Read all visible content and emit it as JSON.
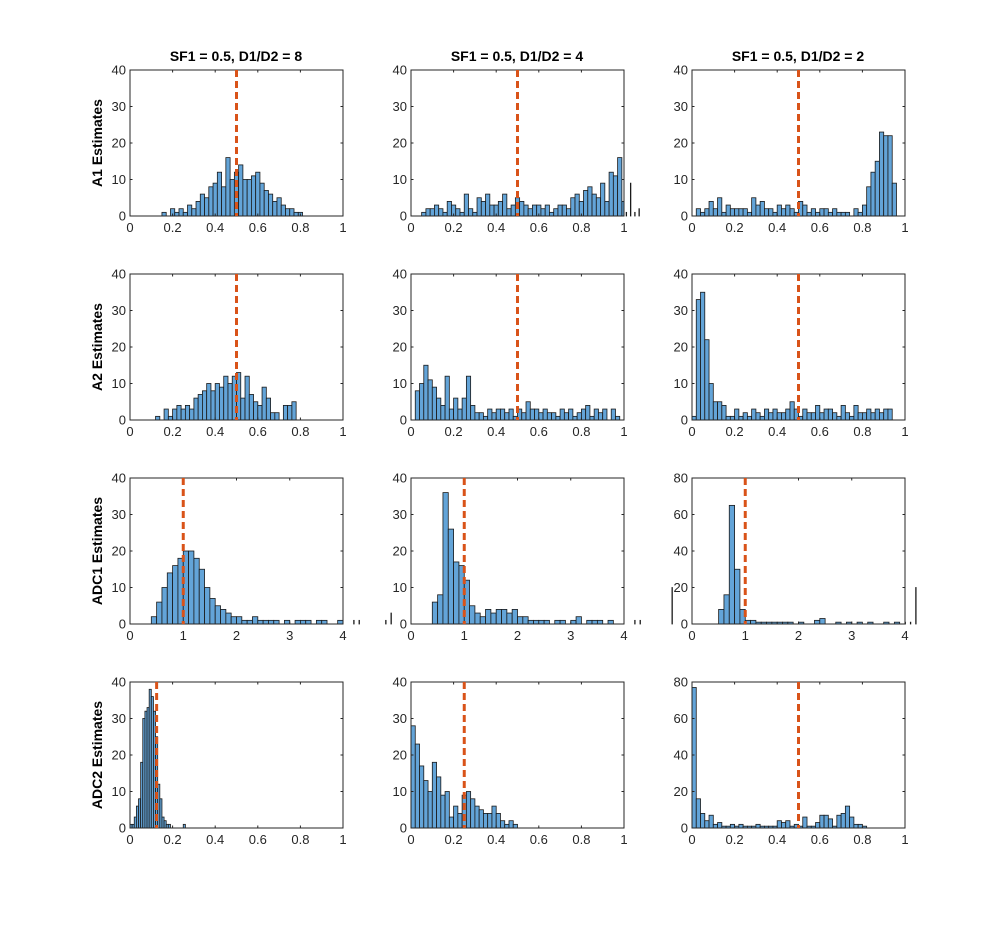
{
  "colors": {
    "bar_fill": "#63a4d8",
    "bar_edge": "#1a1a1a",
    "reference_line": "#d95319",
    "axes": "#262626",
    "background": "#ffffff"
  },
  "column_titles": [
    "SF1 = 0.5, D1/D2 = 8",
    "SF1 = 0.5, D1/D2 = 4",
    "SF1 = 0.5, D1/D2 = 2"
  ],
  "row_labels": [
    "A1 Estimates",
    "A2 Estimates",
    "ADC1 Estimates",
    "ADC2 Estimates"
  ],
  "chart_data": [
    {
      "type": "bar",
      "row": 0,
      "col": 0,
      "xlim": [
        0,
        1
      ],
      "ylim": [
        0,
        40
      ],
      "xticks": [
        "0",
        "0.2",
        "0.4",
        "0.6",
        "0.8",
        "1"
      ],
      "yticks": [
        "0",
        "10",
        "20",
        "30",
        "40"
      ],
      "bin_start": 0.15,
      "bin_width": 0.02,
      "ref_line_x": 0.5,
      "values": [
        1,
        0,
        2,
        1,
        2,
        1,
        3,
        2,
        4,
        6,
        5,
        8,
        9,
        12,
        8,
        16,
        10,
        12,
        14,
        10,
        10,
        11,
        12,
        9,
        7,
        6,
        4,
        5,
        3,
        2,
        2,
        1,
        1
      ]
    },
    {
      "type": "bar",
      "row": 0,
      "col": 1,
      "xlim": [
        0,
        1
      ],
      "ylim": [
        0,
        40
      ],
      "xticks": [
        "0",
        "0.2",
        "0.4",
        "0.6",
        "0.8",
        "1"
      ],
      "yticks": [
        "0",
        "10",
        "20",
        "30",
        "40"
      ],
      "bin_start": 0.05,
      "bin_width": 0.02,
      "ref_line_x": 0.5,
      "values": [
        1,
        2,
        2,
        3,
        2,
        1,
        4,
        3,
        2,
        1,
        6,
        2,
        1,
        5,
        4,
        6,
        3,
        3,
        4,
        6,
        2,
        3,
        5,
        4,
        3,
        2,
        3,
        3,
        2,
        3,
        1,
        2,
        3,
        3,
        2,
        5,
        6,
        4,
        7,
        8,
        6,
        5,
        9,
        4,
        12,
        11,
        16,
        4,
        1,
        9,
        1,
        2
      ]
    },
    {
      "type": "bar",
      "row": 0,
      "col": 2,
      "xlim": [
        0,
        1
      ],
      "ylim": [
        0,
        40
      ],
      "xticks": [
        "0",
        "0.2",
        "0.4",
        "0.6",
        "0.8",
        "1"
      ],
      "yticks": [
        "0",
        "10",
        "20",
        "30",
        "40"
      ],
      "bin_start": 0.02,
      "bin_width": 0.02,
      "ref_line_x": 0.5,
      "values": [
        2,
        1,
        2,
        4,
        2,
        5,
        1,
        3,
        2,
        2,
        2,
        2,
        1,
        5,
        3,
        4,
        2,
        2,
        1,
        3,
        2,
        3,
        2,
        1,
        4,
        3,
        1,
        2,
        1,
        2,
        2,
        1,
        2,
        1,
        1,
        1,
        0,
        2,
        1,
        3,
        8,
        12,
        15,
        23,
        22,
        22,
        9
      ]
    },
    {
      "type": "bar",
      "row": 1,
      "col": 0,
      "xlim": [
        0,
        1
      ],
      "ylim": [
        0,
        40
      ],
      "xticks": [
        "0",
        "0.2",
        "0.4",
        "0.6",
        "0.8",
        "1"
      ],
      "yticks": [
        "0",
        "10",
        "20",
        "30",
        "40"
      ],
      "bin_start": 0.12,
      "bin_width": 0.02,
      "ref_line_x": 0.5,
      "values": [
        1,
        0,
        3,
        1,
        3,
        4,
        3,
        4,
        3,
        6,
        7,
        8,
        10,
        8,
        10,
        9,
        12,
        10,
        12,
        13,
        6,
        12,
        7,
        5,
        4,
        9,
        6,
        2,
        2,
        0,
        4,
        4,
        5
      ]
    },
    {
      "type": "bar",
      "row": 1,
      "col": 1,
      "xlim": [
        0,
        1
      ],
      "ylim": [
        0,
        40
      ],
      "xticks": [
        "0",
        "0.2",
        "0.4",
        "0.6",
        "0.8",
        "1"
      ],
      "yticks": [
        "0",
        "10",
        "20",
        "30",
        "40"
      ],
      "bin_start": 0.02,
      "bin_width": 0.02,
      "ref_line_x": 0.5,
      "values": [
        8,
        10,
        15,
        11,
        9,
        6,
        4,
        12,
        3,
        6,
        3,
        6,
        12,
        4,
        2,
        2,
        1,
        3,
        2,
        3,
        3,
        2,
        3,
        1,
        3,
        2,
        5,
        3,
        3,
        2,
        3,
        2,
        2,
        1,
        3,
        2,
        3,
        1,
        2,
        3,
        4,
        1,
        3,
        2,
        3,
        0,
        3,
        1
      ]
    },
    {
      "type": "bar",
      "row": 1,
      "col": 2,
      "xlim": [
        0,
        1
      ],
      "ylim": [
        0,
        40
      ],
      "xticks": [
        "0",
        "0.2",
        "0.4",
        "0.6",
        "0.8",
        "1"
      ],
      "yticks": [
        "0",
        "10",
        "20",
        "30",
        "40"
      ],
      "bin_start": 0,
      "bin_width": 0.02,
      "ref_line_x": 0.5,
      "values": [
        1,
        33,
        35,
        22,
        10,
        5,
        5,
        4,
        1,
        1,
        3,
        1,
        2,
        1,
        3,
        2,
        1,
        3,
        2,
        3,
        2,
        2,
        3,
        5,
        3,
        1,
        3,
        2,
        2,
        4,
        2,
        3,
        3,
        2,
        1,
        4,
        2,
        1,
        4,
        2,
        2,
        3,
        2,
        3,
        2,
        3,
        3
      ]
    },
    {
      "type": "bar",
      "row": 2,
      "col": 0,
      "xlim": [
        0,
        4
      ],
      "ylim": [
        0,
        40
      ],
      "xticks": [
        "0",
        "1",
        "2",
        "3",
        "4"
      ],
      "yticks": [
        "0",
        "10",
        "20",
        "30",
        "40"
      ],
      "bin_start": 0.4,
      "bin_width": 0.1,
      "ref_line_x": 1,
      "values": [
        2,
        6,
        10,
        14,
        16,
        18,
        20,
        20,
        18,
        15,
        10,
        7,
        5,
        4,
        3,
        2,
        2,
        1,
        1,
        2,
        1,
        1,
        1,
        1,
        0,
        1,
        0,
        1,
        1,
        1,
        0,
        1,
        1,
        0,
        0,
        1,
        0,
        0,
        1,
        1,
        0,
        0,
        0,
        0,
        1,
        3
      ]
    },
    {
      "type": "bar",
      "row": 2,
      "col": 1,
      "xlim": [
        0,
        4
      ],
      "ylim": [
        0,
        40
      ],
      "xticks": [
        "0",
        "1",
        "2",
        "3",
        "4"
      ],
      "yticks": [
        "0",
        "10",
        "20",
        "30",
        "40"
      ],
      "bin_start": 0.4,
      "bin_width": 0.1,
      "ref_line_x": 1,
      "values": [
        6,
        8,
        36,
        26,
        17,
        16,
        12,
        5,
        3,
        2,
        4,
        3,
        4,
        4,
        3,
        4,
        2,
        2,
        1,
        1,
        1,
        1,
        0,
        1,
        1,
        0,
        1,
        2,
        0,
        1,
        1,
        1,
        0,
        1,
        0,
        0,
        0,
        0,
        1,
        1,
        0,
        0,
        0,
        0,
        0,
        10
      ]
    },
    {
      "type": "bar",
      "row": 2,
      "col": 2,
      "xlim": [
        0,
        4
      ],
      "ylim": [
        0,
        80
      ],
      "xticks": [
        "0",
        "1",
        "2",
        "3",
        "4"
      ],
      "yticks": [
        "0",
        "20",
        "40",
        "60",
        "80"
      ],
      "bin_start": 0.5,
      "bin_width": 0.1,
      "ref_line_x": 1,
      "values": [
        8,
        16,
        65,
        30,
        8,
        2,
        2,
        1,
        1,
        1,
        1,
        1,
        1,
        1,
        0,
        1,
        0,
        0,
        2,
        3,
        0,
        0,
        1,
        0,
        1,
        0,
        1,
        0,
        1,
        0,
        0,
        1,
        0,
        1,
        0,
        1,
        1,
        20
      ]
    },
    {
      "type": "bar",
      "row": 3,
      "col": 0,
      "xlim": [
        0,
        1
      ],
      "ylim": [
        0,
        40
      ],
      "xticks": [
        "0",
        "0.2",
        "0.4",
        "0.6",
        "0.8",
        "1"
      ],
      "yticks": [
        "0",
        "10",
        "20",
        "30",
        "40"
      ],
      "bin_start": 0,
      "bin_width": 0.01,
      "ref_line_x": 0.125,
      "values": [
        1,
        1,
        3,
        6,
        8,
        18,
        30,
        32,
        33,
        38,
        36,
        32,
        25,
        12,
        8,
        3,
        2,
        1,
        1,
        0,
        0,
        0,
        0,
        0,
        0,
        1
      ]
    },
    {
      "type": "bar",
      "row": 3,
      "col": 1,
      "xlim": [
        0,
        1
      ],
      "ylim": [
        0,
        40
      ],
      "xticks": [
        "0",
        "0.2",
        "0.4",
        "0.6",
        "0.8",
        "1"
      ],
      "yticks": [
        "0",
        "10",
        "20",
        "30",
        "40"
      ],
      "bin_start": 0,
      "bin_width": 0.02,
      "ref_line_x": 0.25,
      "values": [
        28,
        23,
        17,
        13,
        10,
        18,
        14,
        9,
        10,
        3,
        6,
        4,
        9,
        10,
        8,
        6,
        5,
        4,
        4,
        6,
        4,
        2,
        1,
        2,
        1
      ]
    },
    {
      "type": "bar",
      "row": 3,
      "col": 2,
      "xlim": [
        0,
        1
      ],
      "ylim": [
        0,
        80
      ],
      "xticks": [
        "0",
        "0.2",
        "0.4",
        "0.6",
        "0.8",
        "1"
      ],
      "yticks": [
        "0",
        "20",
        "40",
        "60",
        "80"
      ],
      "bin_start": 0,
      "bin_width": 0.02,
      "ref_line_x": 0.5,
      "values": [
        77,
        16,
        8,
        4,
        7,
        2,
        3,
        1,
        1,
        2,
        1,
        2,
        1,
        1,
        1,
        2,
        1,
        1,
        1,
        1,
        4,
        3,
        4,
        1,
        2,
        1,
        6,
        1,
        1,
        3,
        7,
        7,
        5,
        1,
        7,
        8,
        12,
        6,
        2,
        2,
        1
      ]
    }
  ]
}
